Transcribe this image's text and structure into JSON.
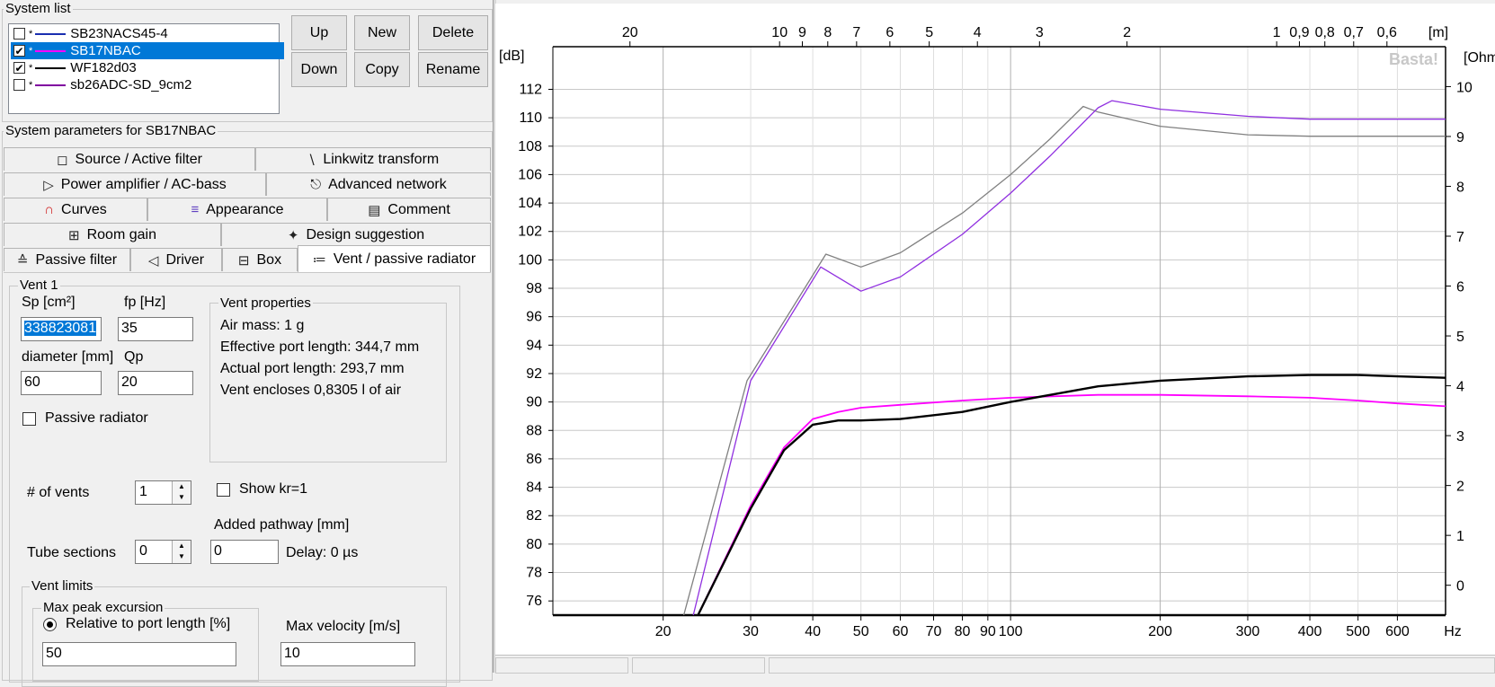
{
  "system_list": {
    "title": "System list",
    "items": [
      {
        "checked": false,
        "star": "*",
        "color": "#1a2fb0",
        "label": "SB23NACS45-4",
        "selected": false
      },
      {
        "checked": true,
        "star": "*",
        "color": "#ff00ff",
        "label": "SB17NBAC",
        "selected": true
      },
      {
        "checked": true,
        "star": "*",
        "color": "#000000",
        "label": "WF182d03",
        "selected": false
      },
      {
        "checked": false,
        "star": "*",
        "color": "#8000a0",
        "label": "sb26ADC-SD_9cm2",
        "selected": false
      }
    ],
    "buttons": {
      "up": "Up",
      "new": "New",
      "delete": "Delete",
      "down": "Down",
      "copy": "Copy",
      "rename": "Rename"
    }
  },
  "system_params": {
    "title": "System parameters for SB17NBAC",
    "tabs": {
      "source": "Source / Active filter",
      "linkwitz": "Linkwitz transform",
      "power": "Power amplifier / AC-bass",
      "advanced": "Advanced network",
      "curves": "Curves",
      "appearance": "Appearance",
      "comment": "Comment",
      "room": "Room gain",
      "design": "Design suggestion",
      "passive": "Passive filter",
      "driver": "Driver",
      "box": "Box",
      "vent": "Vent / passive radiator"
    },
    "tab_icons": {
      "source": "filter-icon",
      "linkwitz": "linkwitz-icon",
      "power": "amplifier-icon",
      "advanced": "network-icon",
      "curves": "curves-icon",
      "appearance": "appearance-icon",
      "comment": "comment-icon",
      "room": "room-icon",
      "design": "wand-icon",
      "passive": "passive-filter-icon",
      "driver": "speaker-icon",
      "box": "box-icon",
      "vent": "vent-icon"
    }
  },
  "vent": {
    "group_title": "Vent 1",
    "sp_label": "Sp [cm²]",
    "sp_value": "338823081",
    "fp_label": "fp [Hz]",
    "fp_value": "35",
    "diameter_label": "diameter [mm]",
    "diameter_value": "60",
    "qp_label": "Qp",
    "qp_value": "20",
    "passive_radiator_label": "Passive radiator",
    "passive_radiator_checked": false,
    "properties_title": "Vent properties",
    "properties": [
      "Air mass: 1 g",
      "Effective port length: 344,7 mm",
      "Actual port length: 293,7 mm",
      "Vent encloses 0,8305 l of air"
    ],
    "num_vents_label": "# of vents",
    "num_vents_value": "1",
    "show_kr_label": "Show kr=1",
    "show_kr_checked": false,
    "added_pathway_label": "Added pathway [mm]",
    "tube_sections_label": "Tube sections",
    "tube_sections_value": "0",
    "added_pathway_value": "0",
    "delay_text": "Delay: 0 µs",
    "limits_title": "Vent limits",
    "max_peak_title": "Max peak excursion",
    "relative_label": "Relative to port length [%]",
    "relative_value": "50",
    "max_velocity_label": "Max velocity [m/s]",
    "max_velocity_value": "10"
  },
  "chart_data": {
    "type": "line",
    "watermark": "Basta!",
    "y_unit": "[dB]",
    "y2_unit": "[Ohm]",
    "x_unit": "Hz",
    "top_unit": "[m]",
    "x_scale": "log",
    "xlim": [
      12,
      750
    ],
    "ylim": [
      75,
      115
    ],
    "y2lim": [
      -0.6,
      10.8
    ],
    "grid": true,
    "y_ticks": [
      76,
      78,
      80,
      82,
      84,
      86,
      88,
      90,
      92,
      94,
      96,
      98,
      100,
      102,
      104,
      106,
      108,
      110,
      112
    ],
    "y2_ticks": [
      0,
      1,
      2,
      3,
      4,
      5,
      6,
      7,
      8,
      9,
      10
    ],
    "x_ticks": [
      20,
      30,
      40,
      50,
      60,
      70,
      80,
      90,
      100,
      200,
      300,
      400,
      500,
      600
    ],
    "x_tick_labels": [
      "20",
      "30",
      "40",
      "50",
      "60",
      "70",
      "80",
      "90",
      "100",
      "200",
      "300",
      "400",
      "500",
      "600"
    ],
    "top_ticks": [
      {
        "label": "20",
        "m": 20
      },
      {
        "label": "10",
        "m": 10
      },
      {
        "label": "9",
        "m": 9
      },
      {
        "label": "8",
        "m": 8
      },
      {
        "label": "7",
        "m": 7
      },
      {
        "label": "6",
        "m": 6
      },
      {
        "label": "5",
        "m": 5
      },
      {
        "label": "4",
        "m": 4
      },
      {
        "label": "3",
        "m": 3
      },
      {
        "label": "2",
        "m": 2
      },
      {
        "label": "1",
        "m": 1
      },
      {
        "label": "0,9",
        "m": 0.9
      },
      {
        "label": "0,8",
        "m": 0.8
      },
      {
        "label": "0,7",
        "m": 0.7
      },
      {
        "label": "0,6",
        "m": 0.6
      }
    ],
    "series": [
      {
        "color": "#808080",
        "width": 1.3,
        "x": [
          22,
          29.5,
          42.5,
          50,
          60,
          80,
          100,
          120,
          140,
          150,
          200,
          300,
          400,
          500,
          600,
          750
        ],
        "y": [
          75,
          91.5,
          100.4,
          99.5,
          100.5,
          103.3,
          106,
          108.5,
          110.8,
          110.4,
          109.4,
          108.8,
          108.7,
          108.7,
          108.7,
          108.7
        ]
      },
      {
        "color": "#9030e0",
        "width": 1.3,
        "x": [
          23,
          30,
          41.5,
          50,
          60,
          80,
          100,
          120,
          150,
          160,
          200,
          300,
          400,
          500,
          600,
          750
        ],
        "y": [
          75,
          91.5,
          99.5,
          97.8,
          98.8,
          101.8,
          104.7,
          107.3,
          110.7,
          111.2,
          110.6,
          110.1,
          109.9,
          109.9,
          109.9,
          109.9
        ]
      },
      {
        "color": "#ff00ff",
        "width": 1.8,
        "x": [
          23.5,
          30,
          35,
          40,
          45,
          50,
          60,
          80,
          100,
          150,
          200,
          300,
          400,
          500,
          600,
          750
        ],
        "y": [
          75,
          82.7,
          86.8,
          88.8,
          89.3,
          89.6,
          89.8,
          90.1,
          90.3,
          90.5,
          90.5,
          90.4,
          90.3,
          90.1,
          89.9,
          89.7
        ]
      },
      {
        "color": "#000000",
        "width": 2.4,
        "x": [
          23.5,
          30,
          35,
          40,
          45,
          50,
          60,
          80,
          100,
          150,
          200,
          300,
          400,
          500,
          600,
          750
        ],
        "y": [
          75,
          82.5,
          86.6,
          88.4,
          88.7,
          88.7,
          88.8,
          89.3,
          90.0,
          91.1,
          91.5,
          91.8,
          91.9,
          91.9,
          91.8,
          91.7
        ]
      }
    ]
  }
}
